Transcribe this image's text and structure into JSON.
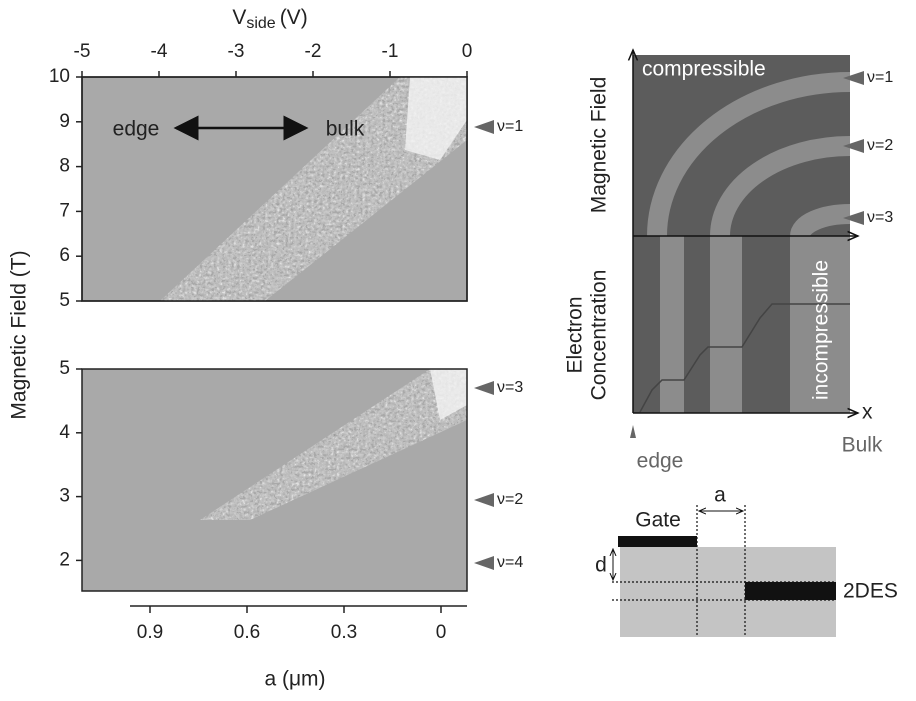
{
  "top_axis": {
    "title": "V",
    "title_sub": "side",
    "title_unit": "(V)",
    "ticks": [
      "-5",
      "-4",
      "-3",
      "-2",
      "-1",
      "0"
    ]
  },
  "y_axis": {
    "title": "Magnetic Field (T)",
    "upper_ticks": [
      "10",
      "9",
      "8",
      "7",
      "6",
      "5"
    ],
    "lower_ticks": [
      "5",
      "4",
      "3",
      "2"
    ]
  },
  "bottom_axis": {
    "title": "a  (μm)",
    "ticks": [
      "0.9",
      "0.6",
      "0.3",
      "0"
    ]
  },
  "annotations": {
    "edge": "edge",
    "bulk": "bulk"
  },
  "filling_markers": [
    "ν=1",
    "ν=3",
    "ν=2",
    "ν=4"
  ],
  "schematic": {
    "y_label_top": "Magnetic Field",
    "y_label_bottom_1": "Electron",
    "y_label_bottom_2": "Concentration",
    "compressible": "compressible",
    "incompressible": "incompressible",
    "x": "x",
    "edge": "edge",
    "bulk": "Bulk",
    "levels": [
      "ν=1",
      "ν=2",
      "ν=3"
    ]
  },
  "device": {
    "gate": "Gate",
    "a": "a",
    "d": "d",
    "tdes": "2DES"
  }
}
